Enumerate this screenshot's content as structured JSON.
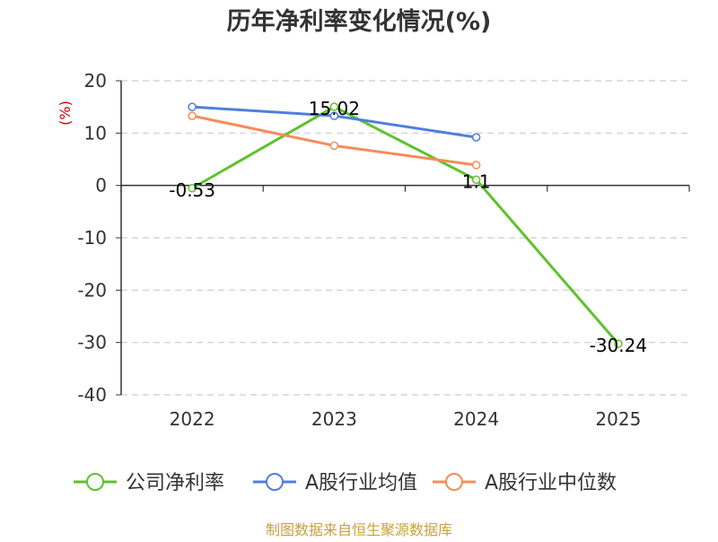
{
  "chart_data": {
    "type": "line",
    "title": "历年净利率变化情况(%)",
    "ylabel": "(%)",
    "xlabel": "",
    "categories": [
      "2022",
      "2023",
      "2024",
      "2025"
    ],
    "ylim": [
      -40,
      20
    ],
    "yticks": [
      20,
      10,
      0,
      -10,
      -20,
      -30,
      -40
    ],
    "grid": true,
    "legend_position": "bottom",
    "series": [
      {
        "name": "公司净利率",
        "color": "#5ec22c",
        "values": [
          -0.53,
          15.02,
          1.1,
          -30.24
        ],
        "data_labels": [
          "-0.53",
          "15.02",
          "1.1",
          "-30.24"
        ]
      },
      {
        "name": "A股行业均值",
        "color": "#4f7fdb",
        "values": [
          15.0,
          13.3,
          9.2,
          null
        ],
        "data_labels": []
      },
      {
        "name": "A股行业中位数",
        "color": "#f58c5a",
        "values": [
          13.3,
          7.6,
          3.9,
          null
        ],
        "data_labels": []
      }
    ],
    "source": "制图数据来自恒生聚源数据库",
    "colors": {
      "title": "#333333",
      "ylabel": "#cc0000",
      "source": "#c8a040",
      "axis": "#333333",
      "grid": "#cccccc"
    }
  }
}
